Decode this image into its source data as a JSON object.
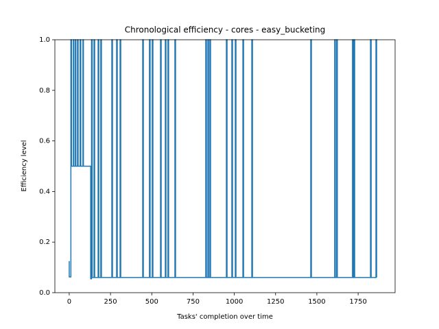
{
  "chart_data": {
    "type": "line",
    "title": "Chronological efficiency - cores - easy_bucketing",
    "xlabel": "Tasks' completion over time",
    "ylabel": "Efficiency level",
    "color": "#1f77b4",
    "xlim": [
      -87,
      1974
    ],
    "ylim": [
      0,
      1
    ],
    "xticks": [
      0,
      250,
      500,
      750,
      1000,
      1250,
      1500,
      1750
    ],
    "yticks": [
      {
        "value": 0,
        "label": "0.0"
      },
      0.2,
      0.4,
      0.6,
      0.8,
      {
        "value": 1,
        "label": "1.0"
      }
    ],
    "x": [
      0,
      0,
      10,
      10,
      14,
      14,
      25,
      25,
      28,
      28,
      37,
      37,
      40,
      40,
      50,
      50,
      54,
      54,
      66,
      66,
      70,
      70,
      83,
      83,
      86,
      86,
      130,
      130,
      135,
      135,
      139,
      139,
      150,
      150,
      154,
      154,
      175,
      175,
      179,
      179,
      191,
      191,
      195,
      195,
      258,
      258,
      262,
      262,
      287,
      287,
      291,
      291,
      308,
      308,
      312,
      312,
      445,
      445,
      449,
      449,
      486,
      486,
      490,
      490,
      503,
      503,
      507,
      507,
      553,
      553,
      557,
      557,
      582,
      582,
      586,
      586,
      598,
      598,
      602,
      602,
      640,
      640,
      644,
      644,
      827,
      827,
      831,
      831,
      840,
      840,
      844,
      844,
      852,
      852,
      856,
      856,
      952,
      952,
      956,
      956,
      985,
      985,
      989,
      989,
      1006,
      1006,
      1010,
      1010,
      1052,
      1052,
      1056,
      1056,
      1106,
      1106,
      1110,
      1110,
      1463,
      1463,
      1467,
      1467,
      1608,
      1608,
      1612,
      1612,
      1620,
      1620,
      1624,
      1624,
      1716,
      1716,
      1720,
      1720,
      1725,
      1725,
      1729,
      1729,
      1825,
      1825,
      1829,
      1829,
      1858,
      1858,
      1862,
      1862
    ],
    "values": [
      0.125,
      0.0625,
      0.0625,
      1,
      1,
      0.5,
      0.5,
      1,
      1,
      0.5,
      0.5,
      1,
      1,
      0.5,
      0.5,
      1,
      1,
      0.5,
      0.5,
      1,
      1,
      0.5,
      0.5,
      1,
      1,
      0.5,
      0.5,
      0.055,
      0.055,
      1,
      1,
      0.06,
      0.06,
      1,
      1,
      0.06,
      0.06,
      1,
      1,
      0.06,
      0.06,
      1,
      1,
      0.06,
      0.06,
      1,
      1,
      0.06,
      0.06,
      1,
      1,
      0.06,
      0.06,
      1,
      1,
      0.06,
      0.06,
      1,
      1,
      0.06,
      0.06,
      1,
      1,
      0.06,
      0.06,
      1,
      1,
      0.06,
      0.06,
      1,
      1,
      0.06,
      0.06,
      1,
      1,
      0.06,
      0.06,
      1,
      1,
      0.06,
      0.06,
      1,
      1,
      0.06,
      0.06,
      1,
      1,
      0.06,
      0.06,
      1,
      1,
      0.06,
      0.06,
      1,
      1,
      0.06,
      0.06,
      1,
      1,
      0.06,
      0.06,
      1,
      1,
      0.06,
      0.06,
      1,
      1,
      0.06,
      0.06,
      1,
      1,
      0.06,
      0.06,
      1,
      1,
      0.06,
      0.06,
      1,
      1,
      0.06,
      0.06,
      1,
      1,
      0.06,
      0.06,
      1,
      1,
      0.06,
      0.06,
      1,
      1,
      0.06,
      0.06,
      1,
      1,
      0.06,
      0.06,
      1,
      1,
      0.06,
      0.06,
      1,
      1,
      0.06
    ]
  }
}
